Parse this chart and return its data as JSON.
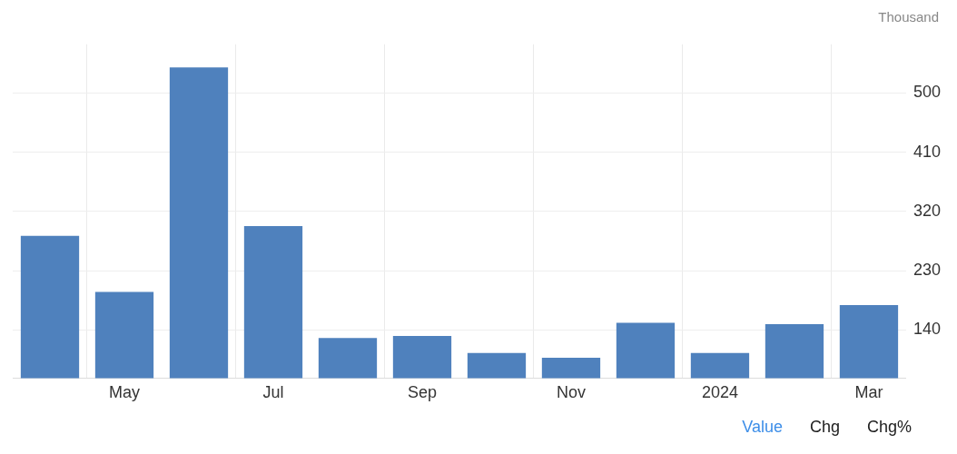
{
  "chart_data": {
    "type": "bar",
    "ylabel": "Thousand",
    "categories": [
      null,
      "May",
      null,
      "Jul",
      null,
      "Sep",
      null,
      "Nov",
      null,
      "2024",
      null,
      "Mar"
    ],
    "values": [
      283,
      198,
      539,
      298,
      128,
      131,
      105,
      98,
      151,
      105,
      149,
      178
    ],
    "color": "#4f81bd",
    "ylim": [
      67,
      574
    ],
    "yticks": [
      140,
      230,
      320,
      410,
      500
    ],
    "grid": true,
    "legend": false,
    "annotations": [
      "Value",
      "Chg",
      "Chg%"
    ]
  }
}
